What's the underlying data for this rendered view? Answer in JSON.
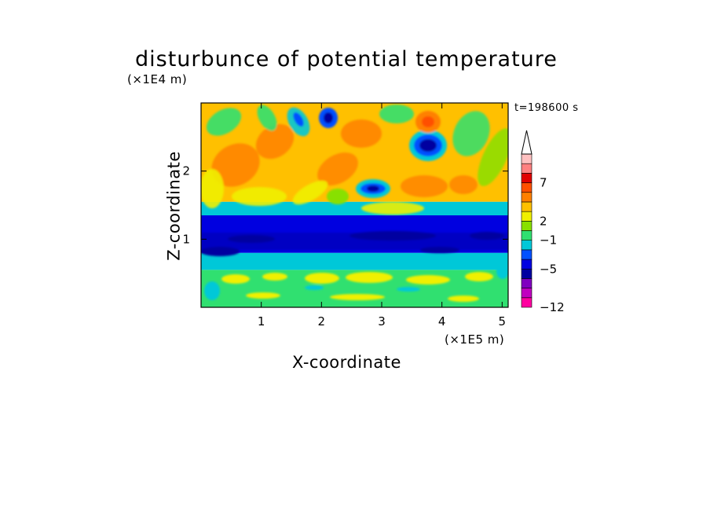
{
  "chart_data": {
    "type": "heatmap",
    "title": "disturbunce of potential temperature",
    "xlabel": "X-coordinate",
    "ylabel": "Z-coordinate",
    "x_unit_label": "(×1E5 m)",
    "z_unit_label": "(×1E4 m)",
    "time_label": "t=198600 s",
    "xlim": [
      0,
      5.1
    ],
    "zlim": [
      0,
      3.0
    ],
    "x_ticks": [
      "1",
      "2",
      "3",
      "4",
      "5"
    ],
    "z_ticks": [
      "1",
      "2"
    ],
    "colorbar": {
      "labels": [
        "7",
        "2",
        "−1",
        "−5",
        "−12"
      ],
      "colors": [
        "#ff00a0",
        "#c000c0",
        "#8000c0",
        "#0000a0",
        "#0000e0",
        "#0050ff",
        "#00c8d8",
        "#30e070",
        "#88e000",
        "#f0f000",
        "#ffc000",
        "#ff8000",
        "#ff5000",
        "#e00000",
        "#ff8080",
        "#ffc0c0"
      ],
      "extend_top": true
    },
    "bands": [
      {
        "z_from": 0.0,
        "z_to": 0.55,
        "value": "−1 to 2",
        "color": "#30e070"
      },
      {
        "z_from": 0.55,
        "z_to": 0.8,
        "value": "−1",
        "color": "#00c8d8"
      },
      {
        "z_from": 0.8,
        "z_to": 1.35,
        "value": "−5",
        "color": "#0000e0"
      },
      {
        "z_from": 1.35,
        "z_to": 1.55,
        "value": "−1",
        "color": "#00c8d8"
      },
      {
        "z_from": 1.55,
        "z_to": 3.0,
        "value": "2 to 7",
        "color": "#ffc000"
      }
    ]
  }
}
